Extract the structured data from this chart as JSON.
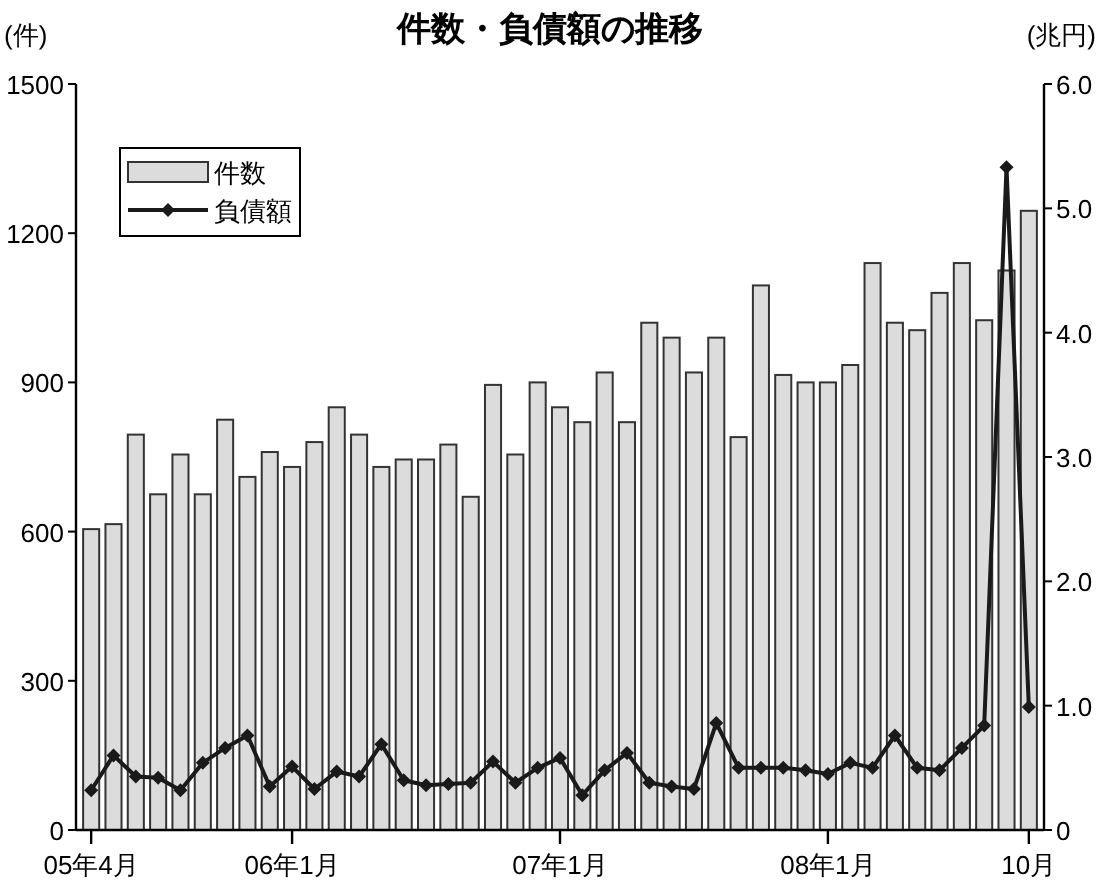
{
  "chart_data": {
    "type": "bar",
    "title": "件数・負債額の推移",
    "ylabel": "(件)",
    "y2label": "(兆円)",
    "categories": [
      "05年4月",
      null,
      null,
      null,
      null,
      null,
      null,
      null,
      null,
      "06年1月",
      null,
      null,
      null,
      null,
      null,
      null,
      null,
      null,
      null,
      null,
      null,
      "07年1月",
      null,
      null,
      null,
      null,
      null,
      null,
      null,
      null,
      null,
      null,
      null,
      "08年1月",
      null,
      null,
      null,
      null,
      null,
      null,
      null,
      null,
      "10月"
    ],
    "series": [
      {
        "name": "件数",
        "color": "#dcdcdc",
        "values": [
          605,
          615,
          795,
          675,
          755,
          675,
          825,
          710,
          760,
          730,
          780,
          850,
          795,
          730,
          745,
          745,
          775,
          670,
          895,
          755,
          900,
          850,
          820,
          920,
          820,
          1020,
          990,
          920,
          990,
          790,
          1095,
          915,
          900,
          900,
          935,
          1140,
          1020,
          1005,
          1080,
          1140,
          1025,
          1125,
          1245
        ]
      },
      {
        "name": "負債額",
        "type": "line",
        "axis": "y2",
        "color": "#1a1a1a",
        "values": [
          0.32,
          0.6,
          0.43,
          0.42,
          0.32,
          0.54,
          0.66,
          0.76,
          0.35,
          0.51,
          0.33,
          0.47,
          0.43,
          0.69,
          0.4,
          0.36,
          0.37,
          0.38,
          0.55,
          0.38,
          0.5,
          0.58,
          0.28,
          0.48,
          0.62,
          0.38,
          0.35,
          0.33,
          0.86,
          0.5,
          0.5,
          0.5,
          0.48,
          0.45,
          0.54,
          0.5,
          0.76,
          0.5,
          0.48,
          0.66,
          0.84,
          5.33,
          0.99
        ]
      }
    ],
    "ylim": [
      0,
      1500
    ],
    "yticks": [
      0,
      300,
      600,
      900,
      1200,
      1500
    ],
    "y2lim": [
      0,
      6
    ],
    "y2ticks": [
      0,
      {
        "value": 1,
        "label": "1.0"
      },
      {
        "value": 2,
        "label": "2.0"
      },
      {
        "value": 3,
        "label": "3.0"
      },
      {
        "value": 4,
        "label": "4.0"
      },
      {
        "value": 5,
        "label": "5.0"
      },
      {
        "value": 6,
        "label": "6.0"
      }
    ],
    "marker": "diamond",
    "legend": "top left",
    "grid": false
  }
}
